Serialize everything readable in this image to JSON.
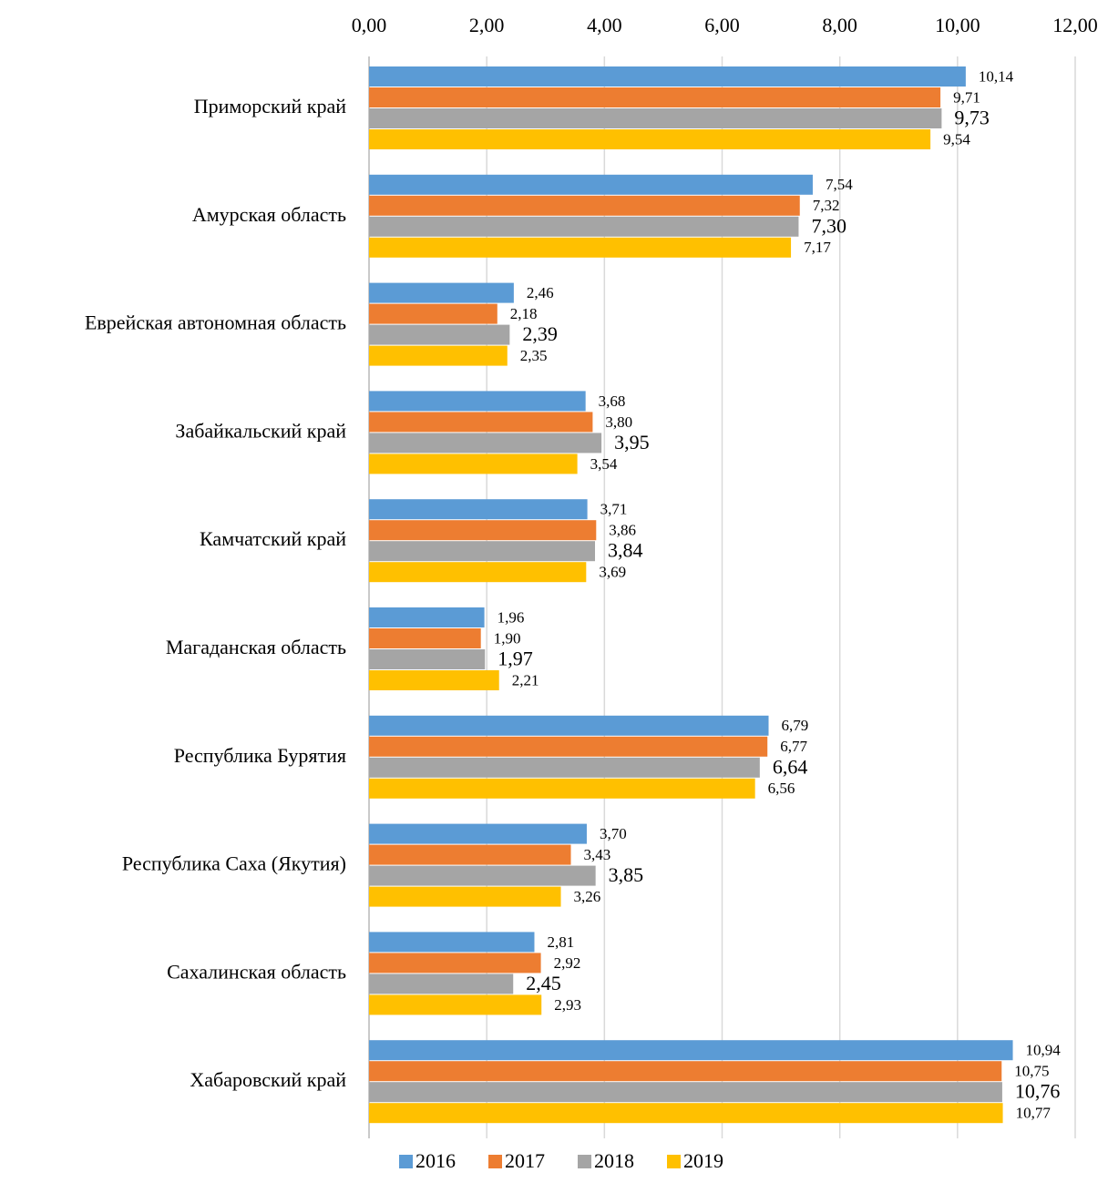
{
  "chart_data": {
    "type": "hbar",
    "categories": [
      "Приморский край",
      "Амурская область",
      "Еврейская автономная область",
      "Забайкальский край",
      "Камчатский край",
      "Магаданская область",
      "Республика Бурятия",
      "Республика Саха (Якутия)",
      "Сахалинская область",
      "Хабаровский край"
    ],
    "series": [
      {
        "name": "2016",
        "color": "#5b9bd5",
        "values": [
          10.14,
          7.54,
          2.46,
          3.68,
          3.71,
          1.96,
          6.79,
          3.7,
          2.81,
          10.94
        ],
        "value_labels": [
          "10,14",
          "7,54",
          "2,46",
          "3,68",
          "3,71",
          "1,96",
          "6,79",
          "3,70",
          "2,81",
          "10,94"
        ]
      },
      {
        "name": "2017",
        "color": "#ed7d31",
        "values": [
          9.71,
          7.32,
          2.18,
          3.8,
          3.86,
          1.9,
          6.77,
          3.43,
          2.92,
          10.75
        ],
        "value_labels": [
          "9,71",
          "7,32",
          "2,18",
          "3,80",
          "3,86",
          "1,90",
          "6,77",
          "3,43",
          "2,92",
          "10,75"
        ]
      },
      {
        "name": "2018",
        "color": "#a5a5a5",
        "values": [
          9.73,
          7.3,
          2.39,
          3.95,
          3.84,
          1.97,
          6.64,
          3.85,
          2.45,
          10.76
        ],
        "value_labels": [
          "9,73",
          "7,30",
          "2,39",
          "3,95",
          "3,84",
          "1,97",
          "6,64",
          "3,85",
          "2,45",
          "10,76"
        ]
      },
      {
        "name": "2019",
        "color": "#ffc000",
        "values": [
          9.54,
          7.17,
          2.35,
          3.54,
          3.69,
          2.21,
          6.56,
          3.26,
          2.93,
          10.77
        ],
        "value_labels": [
          "9,54",
          "7,17",
          "2,35",
          "3,54",
          "3,69",
          "2,21",
          "6,56",
          "3,26",
          "2,93",
          "10,77"
        ]
      }
    ],
    "xlim": [
      0,
      12
    ],
    "xticks": [
      {
        "value": 0,
        "label": "0,00"
      },
      {
        "value": 2,
        "label": "2,00"
      },
      {
        "value": 4,
        "label": "4,00"
      },
      {
        "value": 6,
        "label": "6,00"
      },
      {
        "value": 8,
        "label": "8,00"
      },
      {
        "value": 10,
        "label": "10,00"
      },
      {
        "value": 12,
        "label": "12,00"
      }
    ],
    "grid": true,
    "legend": "bottom"
  }
}
